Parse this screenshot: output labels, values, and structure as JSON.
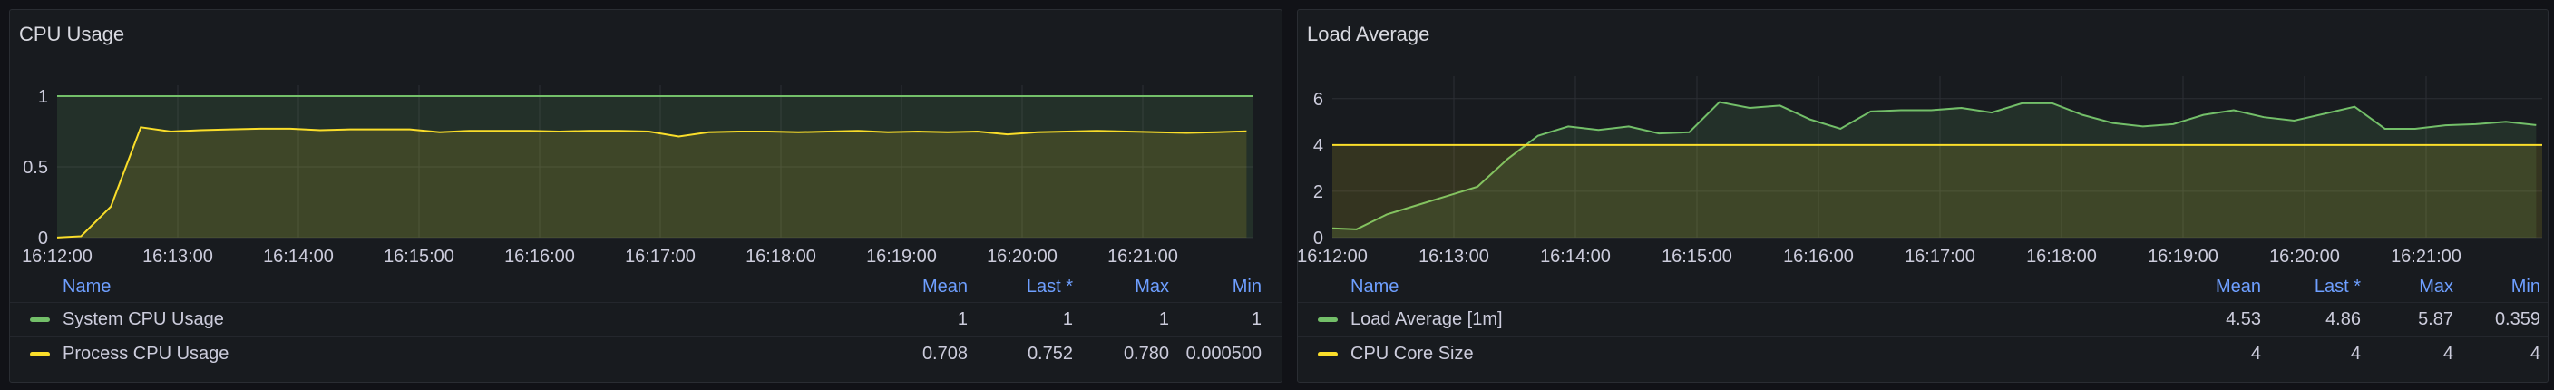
{
  "colors": {
    "green": "#73bf69",
    "yellow": "#fade2a",
    "grid": "#2c2f35",
    "axis_text": "#ccccdc"
  },
  "chart_data": [
    {
      "type": "area",
      "title": "CPU Usage",
      "ylim": [
        0,
        1
      ],
      "yticks": [
        "0",
        "0.5",
        "1"
      ],
      "x_ticks": [
        "16:12:00",
        "16:13:00",
        "16:14:00",
        "16:15:00",
        "16:16:00",
        "16:17:00",
        "16:18:00",
        "16:19:00",
        "16:20:00",
        "16:21:00"
      ],
      "x_range_min": [
        0,
        10
      ],
      "grid": true,
      "legend_placement": "bottom",
      "series": [
        {
          "name": "System CPU Usage",
          "color": "#73bf69",
          "x_min": [
            0,
            10
          ],
          "values": [
            1,
            1
          ],
          "stats": {
            "mean": "1",
            "last": "1",
            "max": "1",
            "min": "1"
          }
        },
        {
          "name": "Process CPU Usage",
          "color": "#fade2a",
          "x_min": [
            0,
            0.2,
            0.45,
            0.7,
            0.95,
            1.2,
            1.45,
            1.7,
            1.95,
            2.2,
            2.45,
            2.7,
            2.95,
            3.2,
            3.45,
            3.7,
            3.95,
            4.2,
            4.45,
            4.7,
            4.95,
            5.2,
            5.45,
            5.7,
            5.95,
            6.2,
            6.45,
            6.7,
            6.95,
            7.2,
            7.45,
            7.7,
            7.95,
            8.2,
            8.45,
            8.7,
            8.95,
            9.2,
            9.45,
            9.7,
            9.95
          ],
          "values": [
            0.0005,
            0.01,
            0.22,
            0.78,
            0.75,
            0.76,
            0.765,
            0.77,
            0.77,
            0.76,
            0.765,
            0.765,
            0.765,
            0.745,
            0.755,
            0.755,
            0.755,
            0.75,
            0.755,
            0.755,
            0.75,
            0.715,
            0.745,
            0.75,
            0.75,
            0.745,
            0.75,
            0.755,
            0.745,
            0.75,
            0.745,
            0.75,
            0.73,
            0.745,
            0.75,
            0.755,
            0.75,
            0.745,
            0.74,
            0.745,
            0.752
          ],
          "stats": {
            "mean": "0.708",
            "last": "0.752",
            "max": "0.780",
            "min": "0.000500"
          }
        }
      ],
      "legend_columns": {
        "name": "Name",
        "mean": "Mean",
        "last": "Last *",
        "max": "Max",
        "min": "Min"
      }
    },
    {
      "type": "area",
      "title": "Load Average",
      "ylim": [
        0,
        6.5
      ],
      "yticks": [
        "0",
        "2",
        "4",
        "6"
      ],
      "x_ticks": [
        "16:12:00",
        "16:13:00",
        "16:14:00",
        "16:15:00",
        "16:16:00",
        "16:17:00",
        "16:18:00",
        "16:19:00",
        "16:20:00",
        "16:21:00"
      ],
      "x_range_min": [
        0,
        10
      ],
      "grid": true,
      "legend_placement": "bottom",
      "series": [
        {
          "name": "Load Average [1m]",
          "color": "#73bf69",
          "x_min": [
            0,
            0.2,
            0.45,
            0.7,
            0.95,
            1.2,
            1.45,
            1.7,
            1.95,
            2.2,
            2.45,
            2.7,
            2.95,
            3.2,
            3.45,
            3.7,
            3.95,
            4.2,
            4.45,
            4.7,
            4.95,
            5.2,
            5.45,
            5.7,
            5.95,
            6.2,
            6.45,
            6.7,
            6.95,
            7.2,
            7.45,
            7.7,
            7.95,
            8.2,
            8.45,
            8.7,
            8.95,
            9.2,
            9.45,
            9.7,
            9.95
          ],
          "values": [
            0.4,
            0.359,
            1.0,
            1.4,
            1.8,
            2.2,
            3.4,
            4.4,
            4.8,
            4.65,
            4.8,
            4.5,
            4.55,
            5.85,
            5.6,
            5.7,
            5.1,
            4.7,
            5.45,
            5.5,
            5.5,
            5.6,
            5.4,
            5.8,
            5.8,
            5.3,
            4.95,
            4.8,
            4.9,
            5.3,
            5.5,
            5.2,
            5.05,
            5.35,
            5.65,
            4.7,
            4.7,
            4.85,
            4.9,
            5.0,
            4.86
          ],
          "stats": {
            "mean": "4.53",
            "last": "4.86",
            "max": "5.87",
            "min": "0.359"
          }
        },
        {
          "name": "CPU Core Size",
          "color": "#fade2a",
          "x_min": [
            0,
            10
          ],
          "values": [
            4,
            4
          ],
          "stats": {
            "mean": "4",
            "last": "4",
            "max": "4",
            "min": "4"
          }
        }
      ],
      "legend_columns": {
        "name": "Name",
        "mean": "Mean",
        "last": "Last *",
        "max": "Max",
        "min": "Min"
      }
    }
  ]
}
